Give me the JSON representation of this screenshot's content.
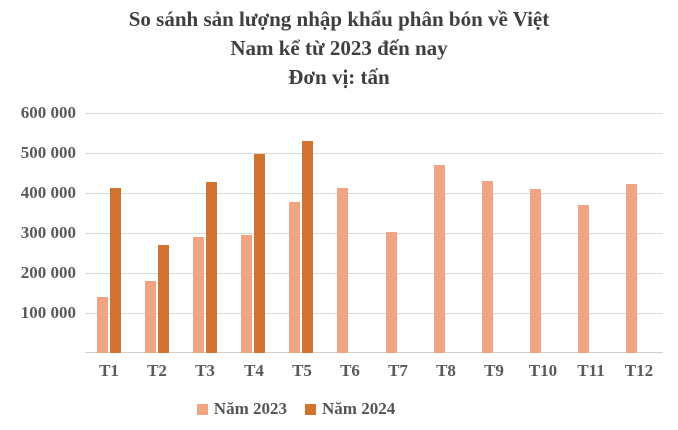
{
  "title": {
    "line1": "So sánh sản lượng nhập khẩu phân bón về Việt",
    "line2": "Nam kể từ 2023 đến nay",
    "line3": "Đơn vị: tấn"
  },
  "colors": {
    "series_2023": "#F0A482",
    "series_2024": "#D1722F",
    "gridline": "#D9D9D9",
    "axis_text": "#595959",
    "title_text": "#3F3F3F"
  },
  "chart_data": {
    "type": "bar",
    "title": "So sánh sản lượng nhập khẩu phân bón về Việt Nam kể từ 2023 đến nay",
    "subtitle": "Đơn vị: tấn",
    "categories": [
      "T1",
      "T2",
      "T3",
      "T4",
      "T5",
      "T6",
      "T7",
      "T8",
      "T9",
      "T10",
      "T11",
      "T12"
    ],
    "series": [
      {
        "name": "Năm 2023",
        "color": "#F0A482",
        "values": [
          140000,
          180000,
          290000,
          295000,
          378000,
          413000,
          303000,
          470000,
          430000,
          410000,
          370000,
          422000
        ]
      },
      {
        "name": "Năm 2024",
        "color": "#D1722F",
        "values": [
          413000,
          271000,
          428000,
          497000,
          530000,
          null,
          null,
          null,
          null,
          null,
          null,
          null
        ]
      }
    ],
    "ylim": [
      0,
      600000
    ],
    "ytick_step": 100000,
    "yticks": [
      {
        "value": 600000,
        "label": "600 000"
      },
      {
        "value": 500000,
        "label": "500 000"
      },
      {
        "value": 400000,
        "label": "400 000"
      },
      {
        "value": 300000,
        "label": "300 000"
      },
      {
        "value": 200000,
        "label": "200 000"
      },
      {
        "value": 100000,
        "label": "100 000"
      }
    ],
    "grid": true,
    "legend_position": "bottom"
  }
}
